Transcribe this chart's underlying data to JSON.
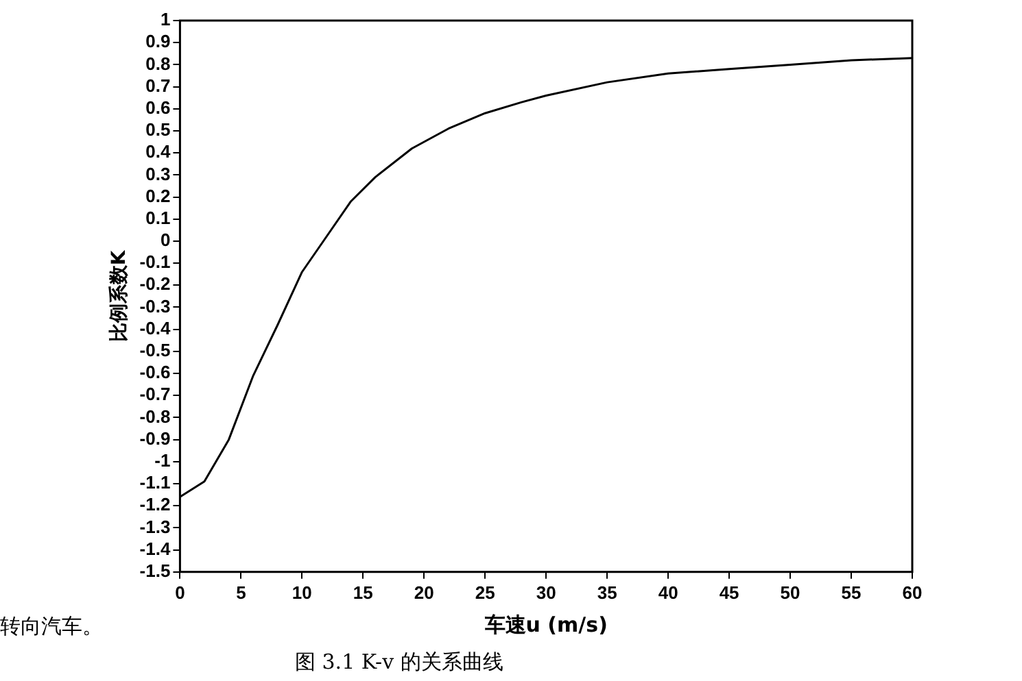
{
  "chart_data": {
    "type": "line",
    "xlabel": "车速u (m/s)",
    "ylabel": "比例系数K",
    "annotations": [
      "转向汽车。",
      "图 3.1 K-v 的关系曲线"
    ],
    "series": [
      {
        "color": "#000000",
        "x": [
          0,
          2,
          4,
          6,
          8,
          10,
          12,
          14,
          16,
          19,
          22,
          25,
          28,
          30,
          35,
          40,
          45,
          50,
          55,
          60
        ],
        "values": [
          -1.16,
          -1.09,
          -0.9,
          -0.61,
          -0.38,
          -0.14,
          0.02,
          0.18,
          0.29,
          0.42,
          0.51,
          0.58,
          0.63,
          0.66,
          0.72,
          0.76,
          0.78,
          0.8,
          0.82,
          0.83
        ]
      }
    ],
    "xlim": [
      0,
      60
    ],
    "xticks": [
      0,
      5,
      10,
      15,
      20,
      25,
      30,
      35,
      40,
      45,
      50,
      55,
      60
    ],
    "ylim": [
      -1.5,
      1
    ],
    "yticks": [
      -1.5,
      -1.4,
      -1.3,
      -1.2,
      -1.1,
      -1,
      -0.9,
      -0.8,
      -0.7,
      -0.6,
      -0.5,
      -0.4,
      -0.3,
      -0.2,
      -0.1,
      0,
      0.1,
      0.2,
      0.3,
      0.4,
      0.5,
      0.6,
      0.7,
      0.8,
      0.9,
      1
    ],
    "grid": false,
    "legend": false,
    "marker": "none",
    "line_style": "solid"
  }
}
